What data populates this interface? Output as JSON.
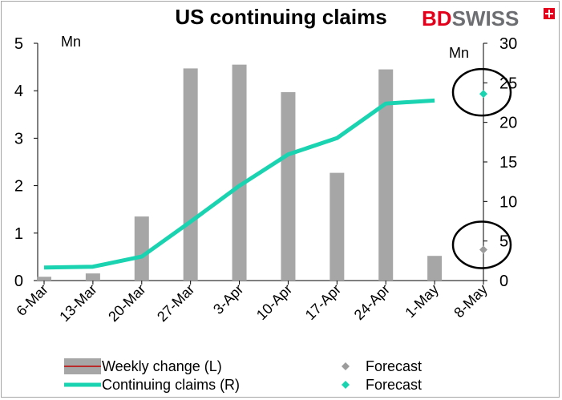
{
  "title": "US continuing claims",
  "logo": {
    "bd": "BD",
    "swiss": "SWISS"
  },
  "colors": {
    "bar": "#a6a6a6",
    "line": "#1ad3b0",
    "forecast_left": "#9c9c9c",
    "forecast_right": "#1ad3b0",
    "legend_bar_line": "#c00000"
  },
  "chart_data": {
    "type": "bar",
    "categories": [
      "6-Mar",
      "13-Mar",
      "20-Mar",
      "27-Mar",
      "3-Apr",
      "10-Apr",
      "17-Apr",
      "24-Apr",
      "1-May",
      "8-May"
    ],
    "series": [
      {
        "name": "Weekly change (L)",
        "type": "bar",
        "axis": "left",
        "values": [
          0.08,
          0.15,
          1.35,
          4.47,
          4.55,
          3.97,
          2.27,
          4.45,
          0.52,
          null
        ]
      },
      {
        "name": "Continuing claims (R)",
        "type": "line",
        "axis": "right",
        "values": [
          1.65,
          1.75,
          3.03,
          7.44,
          11.98,
          15.95,
          18.01,
          22.38,
          22.77,
          null
        ]
      },
      {
        "name": "Forecast",
        "type": "scatter",
        "axis": "left",
        "values": [
          null,
          null,
          null,
          null,
          null,
          null,
          null,
          null,
          null,
          0.65
        ]
      },
      {
        "name": "Forecast",
        "type": "scatter",
        "axis": "right",
        "values": [
          null,
          null,
          null,
          null,
          null,
          null,
          null,
          null,
          null,
          23.6
        ]
      }
    ],
    "left_axis": {
      "unit": "Mn",
      "ylim": [
        0,
        5
      ],
      "ticks": [
        "0",
        "1",
        "2",
        "3",
        "4",
        "5"
      ]
    },
    "right_axis": {
      "unit": "Mn",
      "ylim": [
        0,
        30
      ],
      "ticks": [
        "0",
        "5",
        "10",
        "15",
        "20",
        "25",
        "30"
      ]
    },
    "grid": false,
    "legend": "bottom",
    "annotations": "circles around the two forecast points"
  }
}
